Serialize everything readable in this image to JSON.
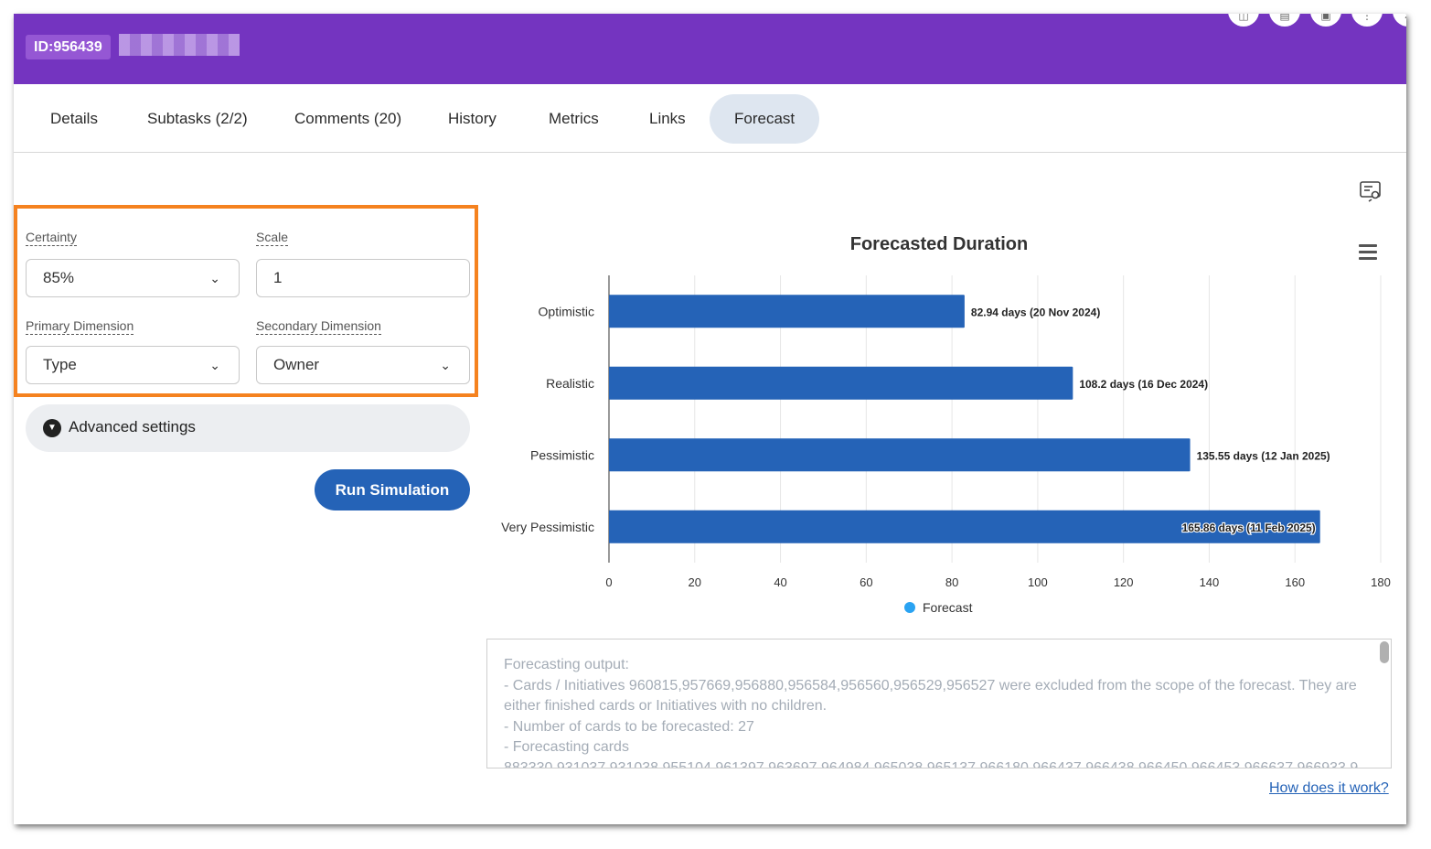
{
  "header": {
    "id_badge": "ID:956439"
  },
  "tabs": [
    {
      "label": "Details"
    },
    {
      "label": "Subtasks (2/2)"
    },
    {
      "label": "Comments (20)"
    },
    {
      "label": "History"
    },
    {
      "label": "Metrics"
    },
    {
      "label": "Links"
    },
    {
      "label": "Forecast",
      "active": true
    }
  ],
  "settings": {
    "certainty": {
      "label": "Certainty",
      "value": "85%"
    },
    "scale": {
      "label": "Scale",
      "value": "1"
    },
    "primary_dimension": {
      "label": "Primary Dimension",
      "value": "Type"
    },
    "secondary_dimension": {
      "label": "Secondary Dimension",
      "value": "Owner"
    },
    "advanced_settings": "Advanced settings",
    "run_button": "Run Simulation",
    "highlight_color": "#f5821f"
  },
  "chart_data": {
    "type": "bar",
    "orientation": "horizontal",
    "title": "Forecasted Duration",
    "categories": [
      "Optimistic",
      "Realistic",
      "Pessimistic",
      "Very Pessimistic"
    ],
    "series": [
      {
        "name": "Forecast",
        "values": [
          82.94,
          108.2,
          135.55,
          165.86
        ]
      }
    ],
    "data_labels": [
      "82.94 days (20 Nov 2024)",
      "108.2 days (16 Dec 2024)",
      "135.55 days (12 Jan 2025)",
      "165.86 days (11 Feb 2025)"
    ],
    "xlim": [
      0,
      180
    ],
    "xticks": [
      0,
      20,
      40,
      60,
      80,
      100,
      120,
      140,
      160,
      180
    ],
    "grid": true,
    "legend_position": "bottom",
    "bar_color": "#2563b7",
    "legend_color": "#2aa3f2"
  },
  "output": {
    "lines": [
      "Forecasting output:",
      "- Cards / Initiatives 960815,957669,956880,956584,956560,956529,956527 were excluded from the scope of the forecast. They are either finished cards or Initiatives with no children.",
      "- Number of cards to be forecasted: 27",
      "- Forecasting cards",
      "883330,931037,931038,955104,961397,963697,964984,965038,965137,966180,966437,966438,966450,966453,966637,966933,9"
    ]
  },
  "help_link": "How does it work?",
  "icons": {
    "export": "export-settings-icon",
    "chart_menu": "hamburger-menu-icon",
    "advanced": "chevron-down-circle-icon"
  }
}
